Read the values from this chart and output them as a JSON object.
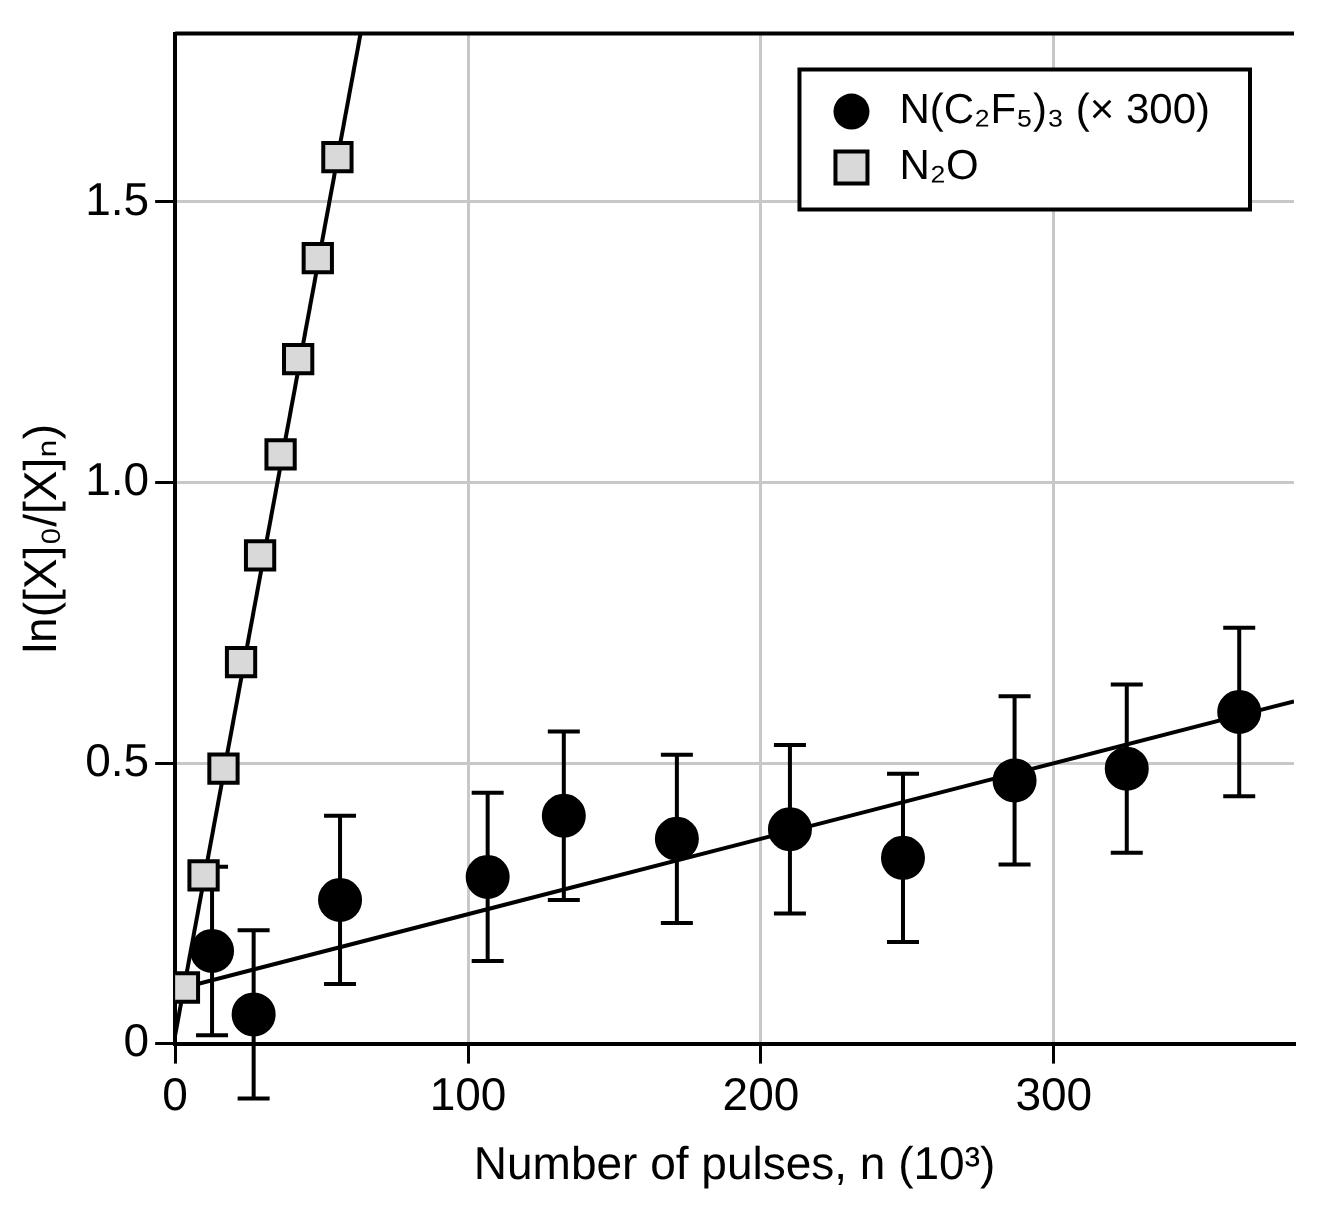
{
  "chart_data": {
    "type": "scatter",
    "xlabel": "Number of pulses, n (10³)",
    "ylabel": "ln([X]₀/[X]ₙ)",
    "xlim": [
      0,
      382
    ],
    "ylim": [
      0,
      1.8
    ],
    "xticks": [
      0,
      100,
      200,
      300
    ],
    "yticks": [
      0,
      0.5,
      {
        "value": 1,
        "label": "1.0"
      },
      1.5
    ],
    "grid": true,
    "legend": "top right",
    "series": [
      {
        "name": "N(C₂F₅)₃ (× 300)",
        "type": "scatter",
        "marker": "circle",
        "color": "#000000",
        "x": [
          12.6,
          26.8,
          56.3,
          106.7,
          132.7,
          171.3,
          209.9,
          248.5,
          286.6,
          324.9,
          363.3
        ],
        "values": [
          0.165,
          0.052,
          0.256,
          0.297,
          0.406,
          0.365,
          0.382,
          0.331,
          0.469,
          0.49,
          0.591
        ],
        "errors": [
          0.15,
          0.15,
          0.15,
          0.15,
          0.15,
          0.15,
          0.15,
          0.15,
          0.15,
          0.15,
          0.15
        ]
      },
      {
        "name": "N₂O",
        "type": "scatter",
        "marker": "square",
        "color": "#d9d9d9",
        "x": [
          3,
          9.7,
          16.5,
          22.5,
          29,
          36,
          42,
          48.7,
          55.4
        ],
        "values": [
          0.1,
          0.3,
          0.49,
          0.68,
          0.87,
          1.05,
          1.22,
          1.4,
          1.58
        ]
      },
      {
        "type": "line",
        "marker": "none",
        "color": "#000000",
        "x": [
          0,
          382
        ],
        "values": [
          0.096,
          0.61
        ]
      },
      {
        "type": "line",
        "marker": "none",
        "color": "#000000",
        "x": [
          0,
          63.3
        ],
        "values": [
          0.015,
          1.8
        ]
      }
    ]
  }
}
